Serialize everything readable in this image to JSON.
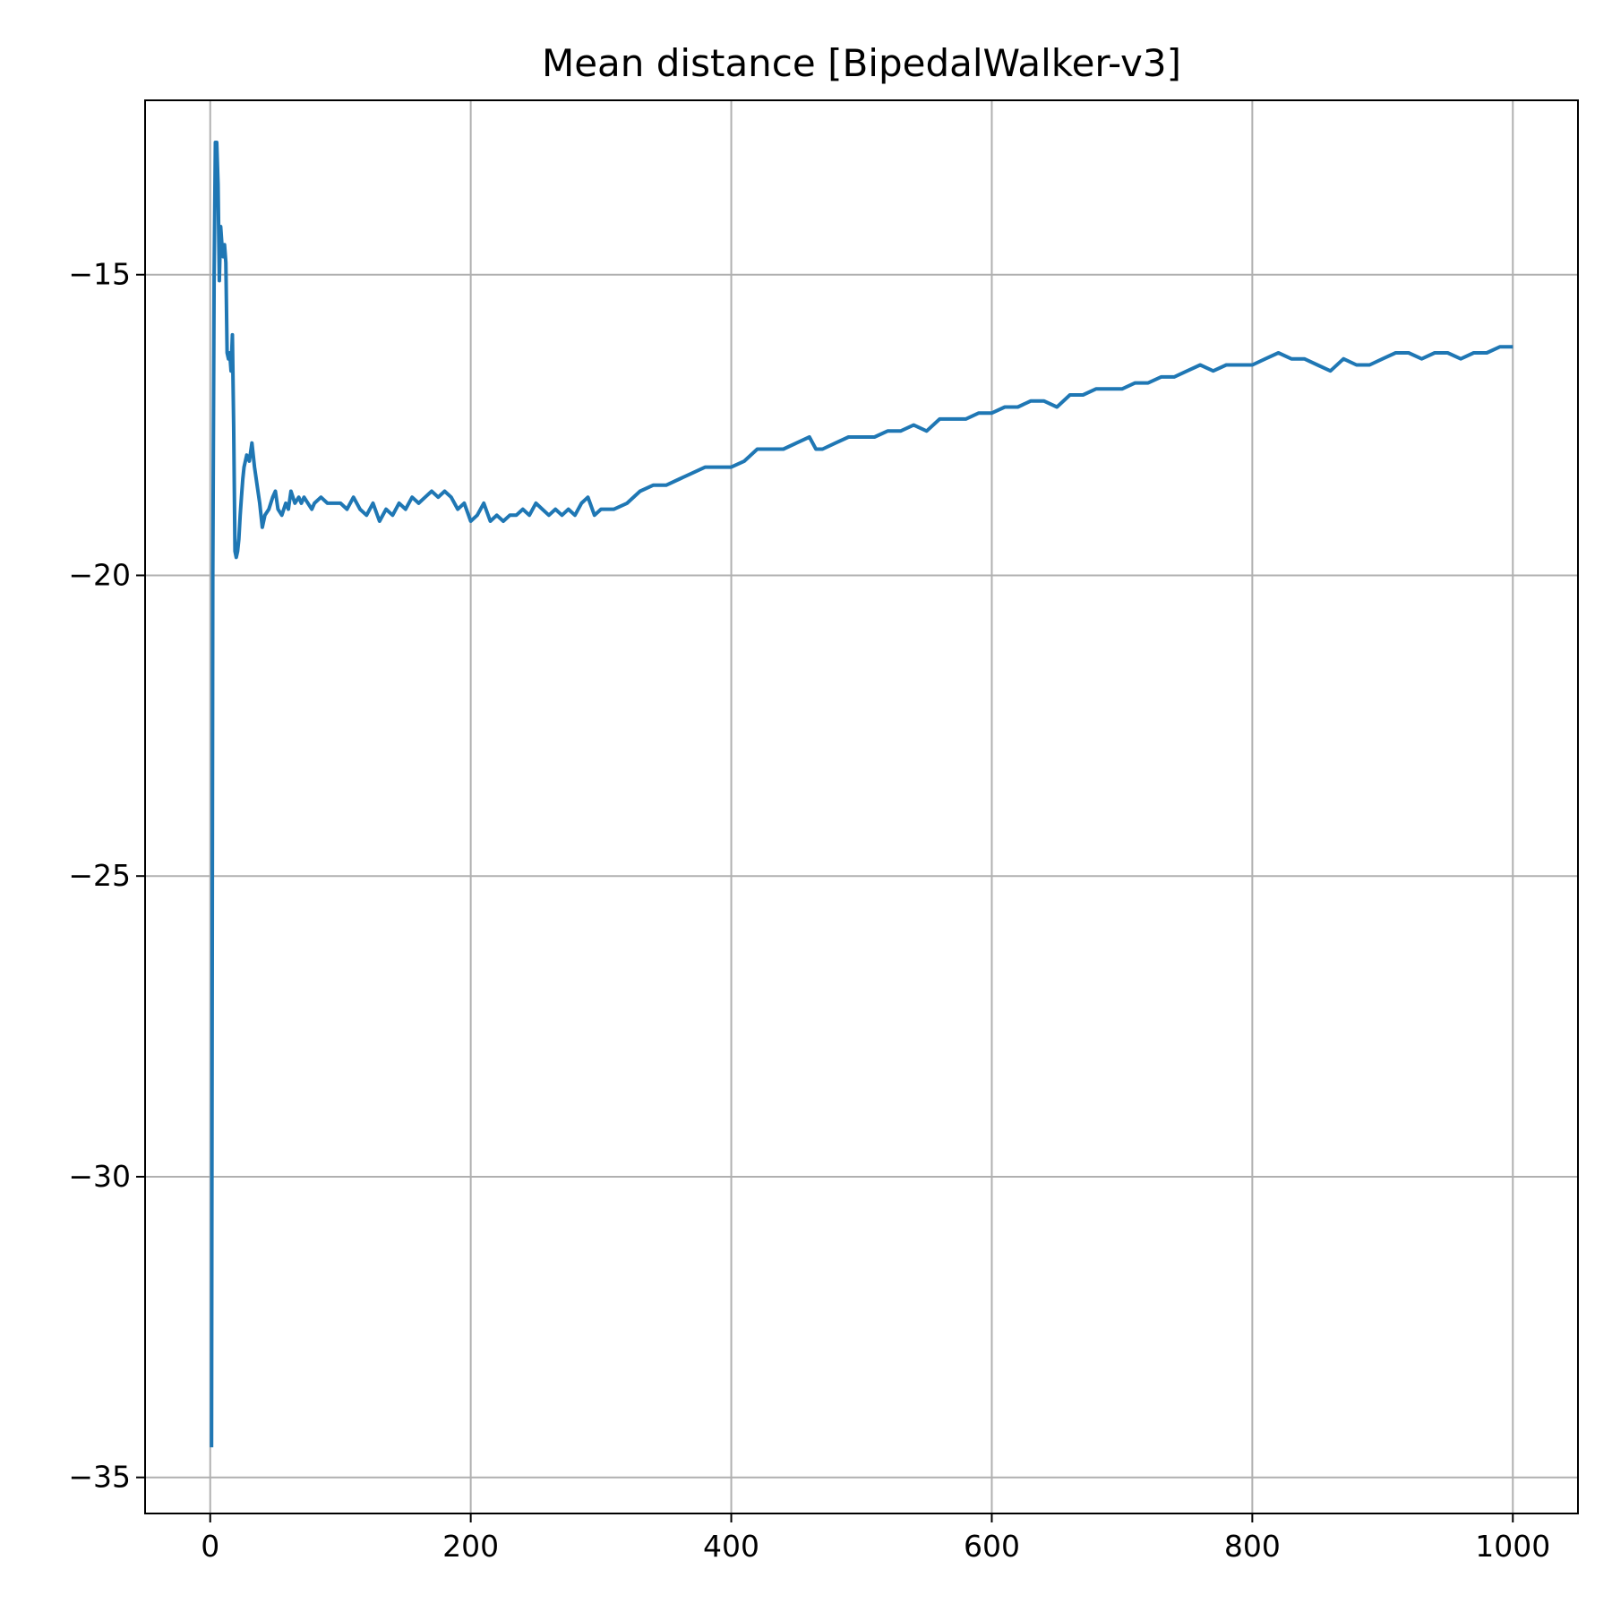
{
  "chart_data": {
    "type": "line",
    "title": "Mean distance [BipedalWalker-v3]",
    "xlabel": "",
    "ylabel": "",
    "xlim": [
      -50,
      1050
    ],
    "ylim": [
      -35.6,
      -12.1
    ],
    "grid": true,
    "xticks": [
      0,
      200,
      400,
      600,
      800,
      1000
    ],
    "yticks": [
      -15,
      -20,
      -25,
      -30,
      -35
    ],
    "xtick_labels": [
      "0",
      "200",
      "400",
      "600",
      "800",
      "1000"
    ],
    "ytick_labels": [
      "−15",
      "−20",
      "−25",
      "−30",
      "−35"
    ],
    "series": [
      {
        "color": "#1f77b4",
        "x": [
          1,
          2,
          3,
          4,
          5,
          6,
          7,
          8,
          9,
          10,
          11,
          12,
          13,
          14,
          15,
          16,
          17,
          18,
          19,
          20,
          21,
          22,
          23,
          24,
          25,
          26,
          28,
          30,
          32,
          34,
          36,
          38,
          40,
          42,
          45,
          48,
          50,
          52,
          55,
          58,
          60,
          62,
          65,
          68,
          70,
          72,
          75,
          78,
          80,
          85,
          90,
          95,
          100,
          105,
          110,
          115,
          120,
          125,
          130,
          135,
          140,
          145,
          150,
          155,
          160,
          165,
          170,
          175,
          180,
          185,
          190,
          195,
          200,
          205,
          210,
          215,
          220,
          225,
          230,
          235,
          240,
          245,
          250,
          255,
          260,
          265,
          270,
          275,
          280,
          285,
          290,
          295,
          300,
          310,
          320,
          330,
          340,
          350,
          360,
          370,
          380,
          390,
          400,
          410,
          420,
          430,
          440,
          450,
          460,
          465,
          470,
          480,
          490,
          500,
          510,
          520,
          530,
          540,
          550,
          560,
          570,
          580,
          590,
          600,
          610,
          620,
          630,
          640,
          650,
          660,
          670,
          680,
          690,
          700,
          710,
          720,
          730,
          740,
          750,
          760,
          770,
          780,
          790,
          800,
          810,
          820,
          830,
          840,
          850,
          860,
          870,
          880,
          890,
          900,
          910,
          920,
          930,
          940,
          950,
          960,
          970,
          980,
          990,
          1000
        ],
        "values": [
          -34.5,
          -20.0,
          -15.0,
          -12.8,
          -12.8,
          -13.5,
          -15.1,
          -14.2,
          -14.5,
          -14.7,
          -14.5,
          -14.8,
          -16.3,
          -16.4,
          -16.3,
          -16.6,
          -16.0,
          -17.5,
          -19.6,
          -19.7,
          -19.6,
          -19.4,
          -19.0,
          -18.7,
          -18.4,
          -18.2,
          -18.0,
          -18.1,
          -17.8,
          -18.2,
          -18.5,
          -18.8,
          -19.2,
          -19.0,
          -18.9,
          -18.7,
          -18.6,
          -18.9,
          -19.0,
          -18.8,
          -18.9,
          -18.6,
          -18.8,
          -18.7,
          -18.8,
          -18.7,
          -18.8,
          -18.9,
          -18.8,
          -18.7,
          -18.8,
          -18.8,
          -18.8,
          -18.9,
          -18.7,
          -18.9,
          -19.0,
          -18.8,
          -19.1,
          -18.9,
          -19.0,
          -18.8,
          -18.9,
          -18.7,
          -18.8,
          -18.7,
          -18.6,
          -18.7,
          -18.6,
          -18.7,
          -18.9,
          -18.8,
          -19.1,
          -19.0,
          -18.8,
          -19.1,
          -19.0,
          -19.1,
          -19.0,
          -19.0,
          -18.9,
          -19.0,
          -18.8,
          -18.9,
          -19.0,
          -18.9,
          -19.0,
          -18.9,
          -19.0,
          -18.8,
          -18.7,
          -19.0,
          -18.9,
          -18.9,
          -18.8,
          -18.6,
          -18.5,
          -18.5,
          -18.4,
          -18.3,
          -18.2,
          -18.2,
          -18.2,
          -18.1,
          -17.9,
          -17.9,
          -17.9,
          -17.8,
          -17.7,
          -17.9,
          -17.9,
          -17.8,
          -17.7,
          -17.7,
          -17.7,
          -17.6,
          -17.6,
          -17.5,
          -17.6,
          -17.4,
          -17.4,
          -17.4,
          -17.3,
          -17.3,
          -17.2,
          -17.2,
          -17.1,
          -17.1,
          -17.2,
          -17.0,
          -17.0,
          -16.9,
          -16.9,
          -16.9,
          -16.8,
          -16.8,
          -16.7,
          -16.7,
          -16.6,
          -16.5,
          -16.6,
          -16.5,
          -16.5,
          -16.5,
          -16.4,
          -16.3,
          -16.4,
          -16.4,
          -16.5,
          -16.6,
          -16.4,
          -16.5,
          -16.5,
          -16.4,
          -16.3,
          -16.3,
          -16.4,
          -16.3,
          -16.3,
          -16.4,
          -16.3,
          -16.3,
          -16.2,
          -16.2
        ]
      }
    ]
  }
}
